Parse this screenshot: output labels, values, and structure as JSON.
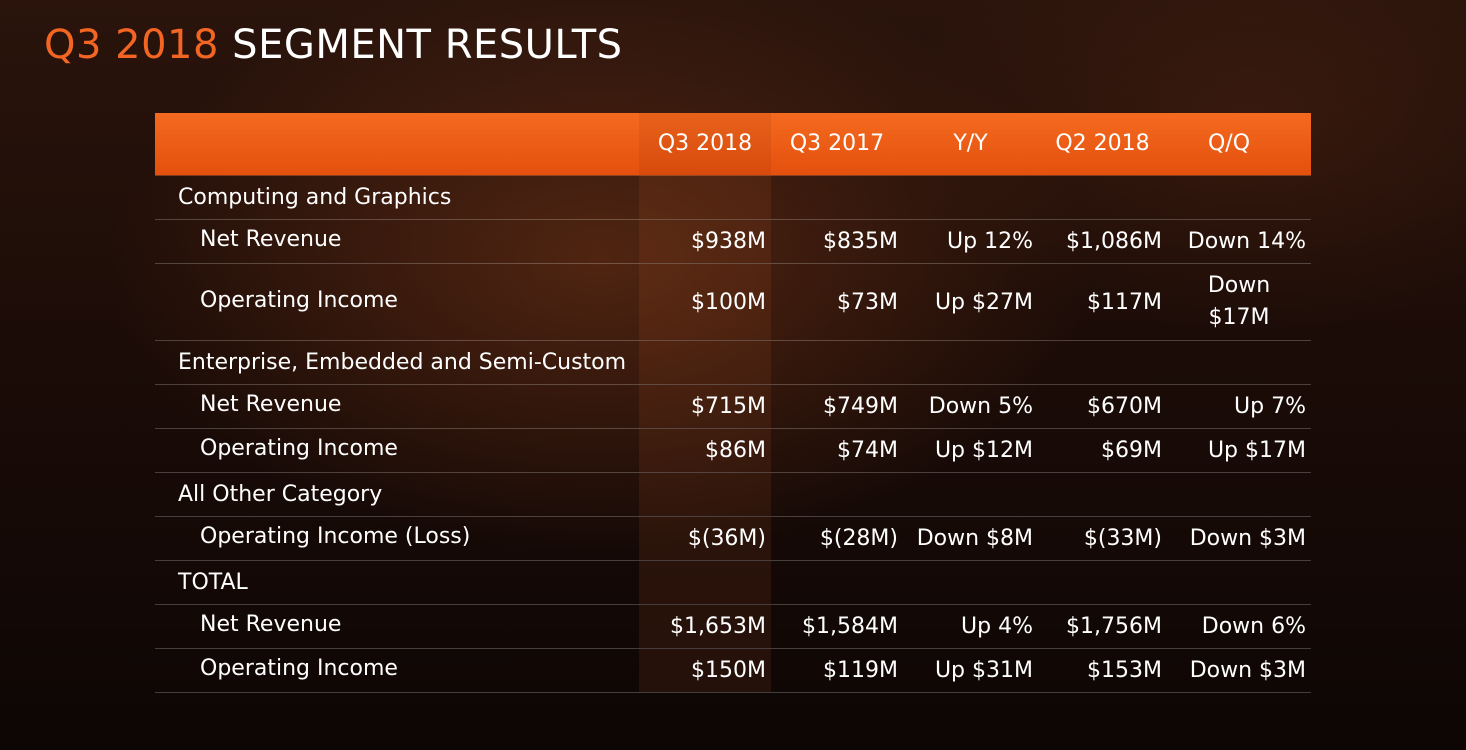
{
  "title": {
    "accent": "Q3 2018",
    "rest": "SEGMENT RESULTS"
  },
  "colors": {
    "accent": "#f26522",
    "header_bg": "#e95a16"
  },
  "table": {
    "columns": [
      "Q3 2018",
      "Q3 2017",
      "Y/Y",
      "Q2 2018",
      "Q/Q"
    ],
    "rows": [
      {
        "type": "section",
        "label": "Computing and Graphics"
      },
      {
        "type": "sub",
        "label": "Net Revenue",
        "values": [
          "$938M",
          "$835M",
          "Up 12%",
          "$1,086M",
          "Down 14%"
        ]
      },
      {
        "type": "sub",
        "label": "Operating Income",
        "values": [
          "$100M",
          "$73M",
          "Up $27M",
          "$117M",
          "Down $17M"
        ]
      },
      {
        "type": "section",
        "label": "Enterprise, Embedded and Semi-Custom"
      },
      {
        "type": "sub",
        "label": "Net Revenue",
        "values": [
          "$715M",
          "$749M",
          "Down 5%",
          "$670M",
          "Up 7%"
        ]
      },
      {
        "type": "sub",
        "label": "Operating Income",
        "values": [
          "$86M",
          "$74M",
          "Up $12M",
          "$69M",
          "Up $17M"
        ]
      },
      {
        "type": "section",
        "label": "All Other Category"
      },
      {
        "type": "sub",
        "label": "Operating Income (Loss)",
        "values": [
          "$(36M)",
          "$(28M)",
          "Down $8M",
          "$(33M)",
          "Down $3M"
        ]
      },
      {
        "type": "section",
        "label": "TOTAL"
      },
      {
        "type": "sub",
        "label": "Net Revenue",
        "values": [
          "$1,653M",
          "$1,584M",
          "Up 4%",
          "$1,756M",
          "Down 6%"
        ]
      },
      {
        "type": "sub",
        "label": "Operating Income",
        "values": [
          "$150M",
          "$119M",
          "Up $31M",
          "$153M",
          "Down $3M"
        ]
      }
    ]
  }
}
